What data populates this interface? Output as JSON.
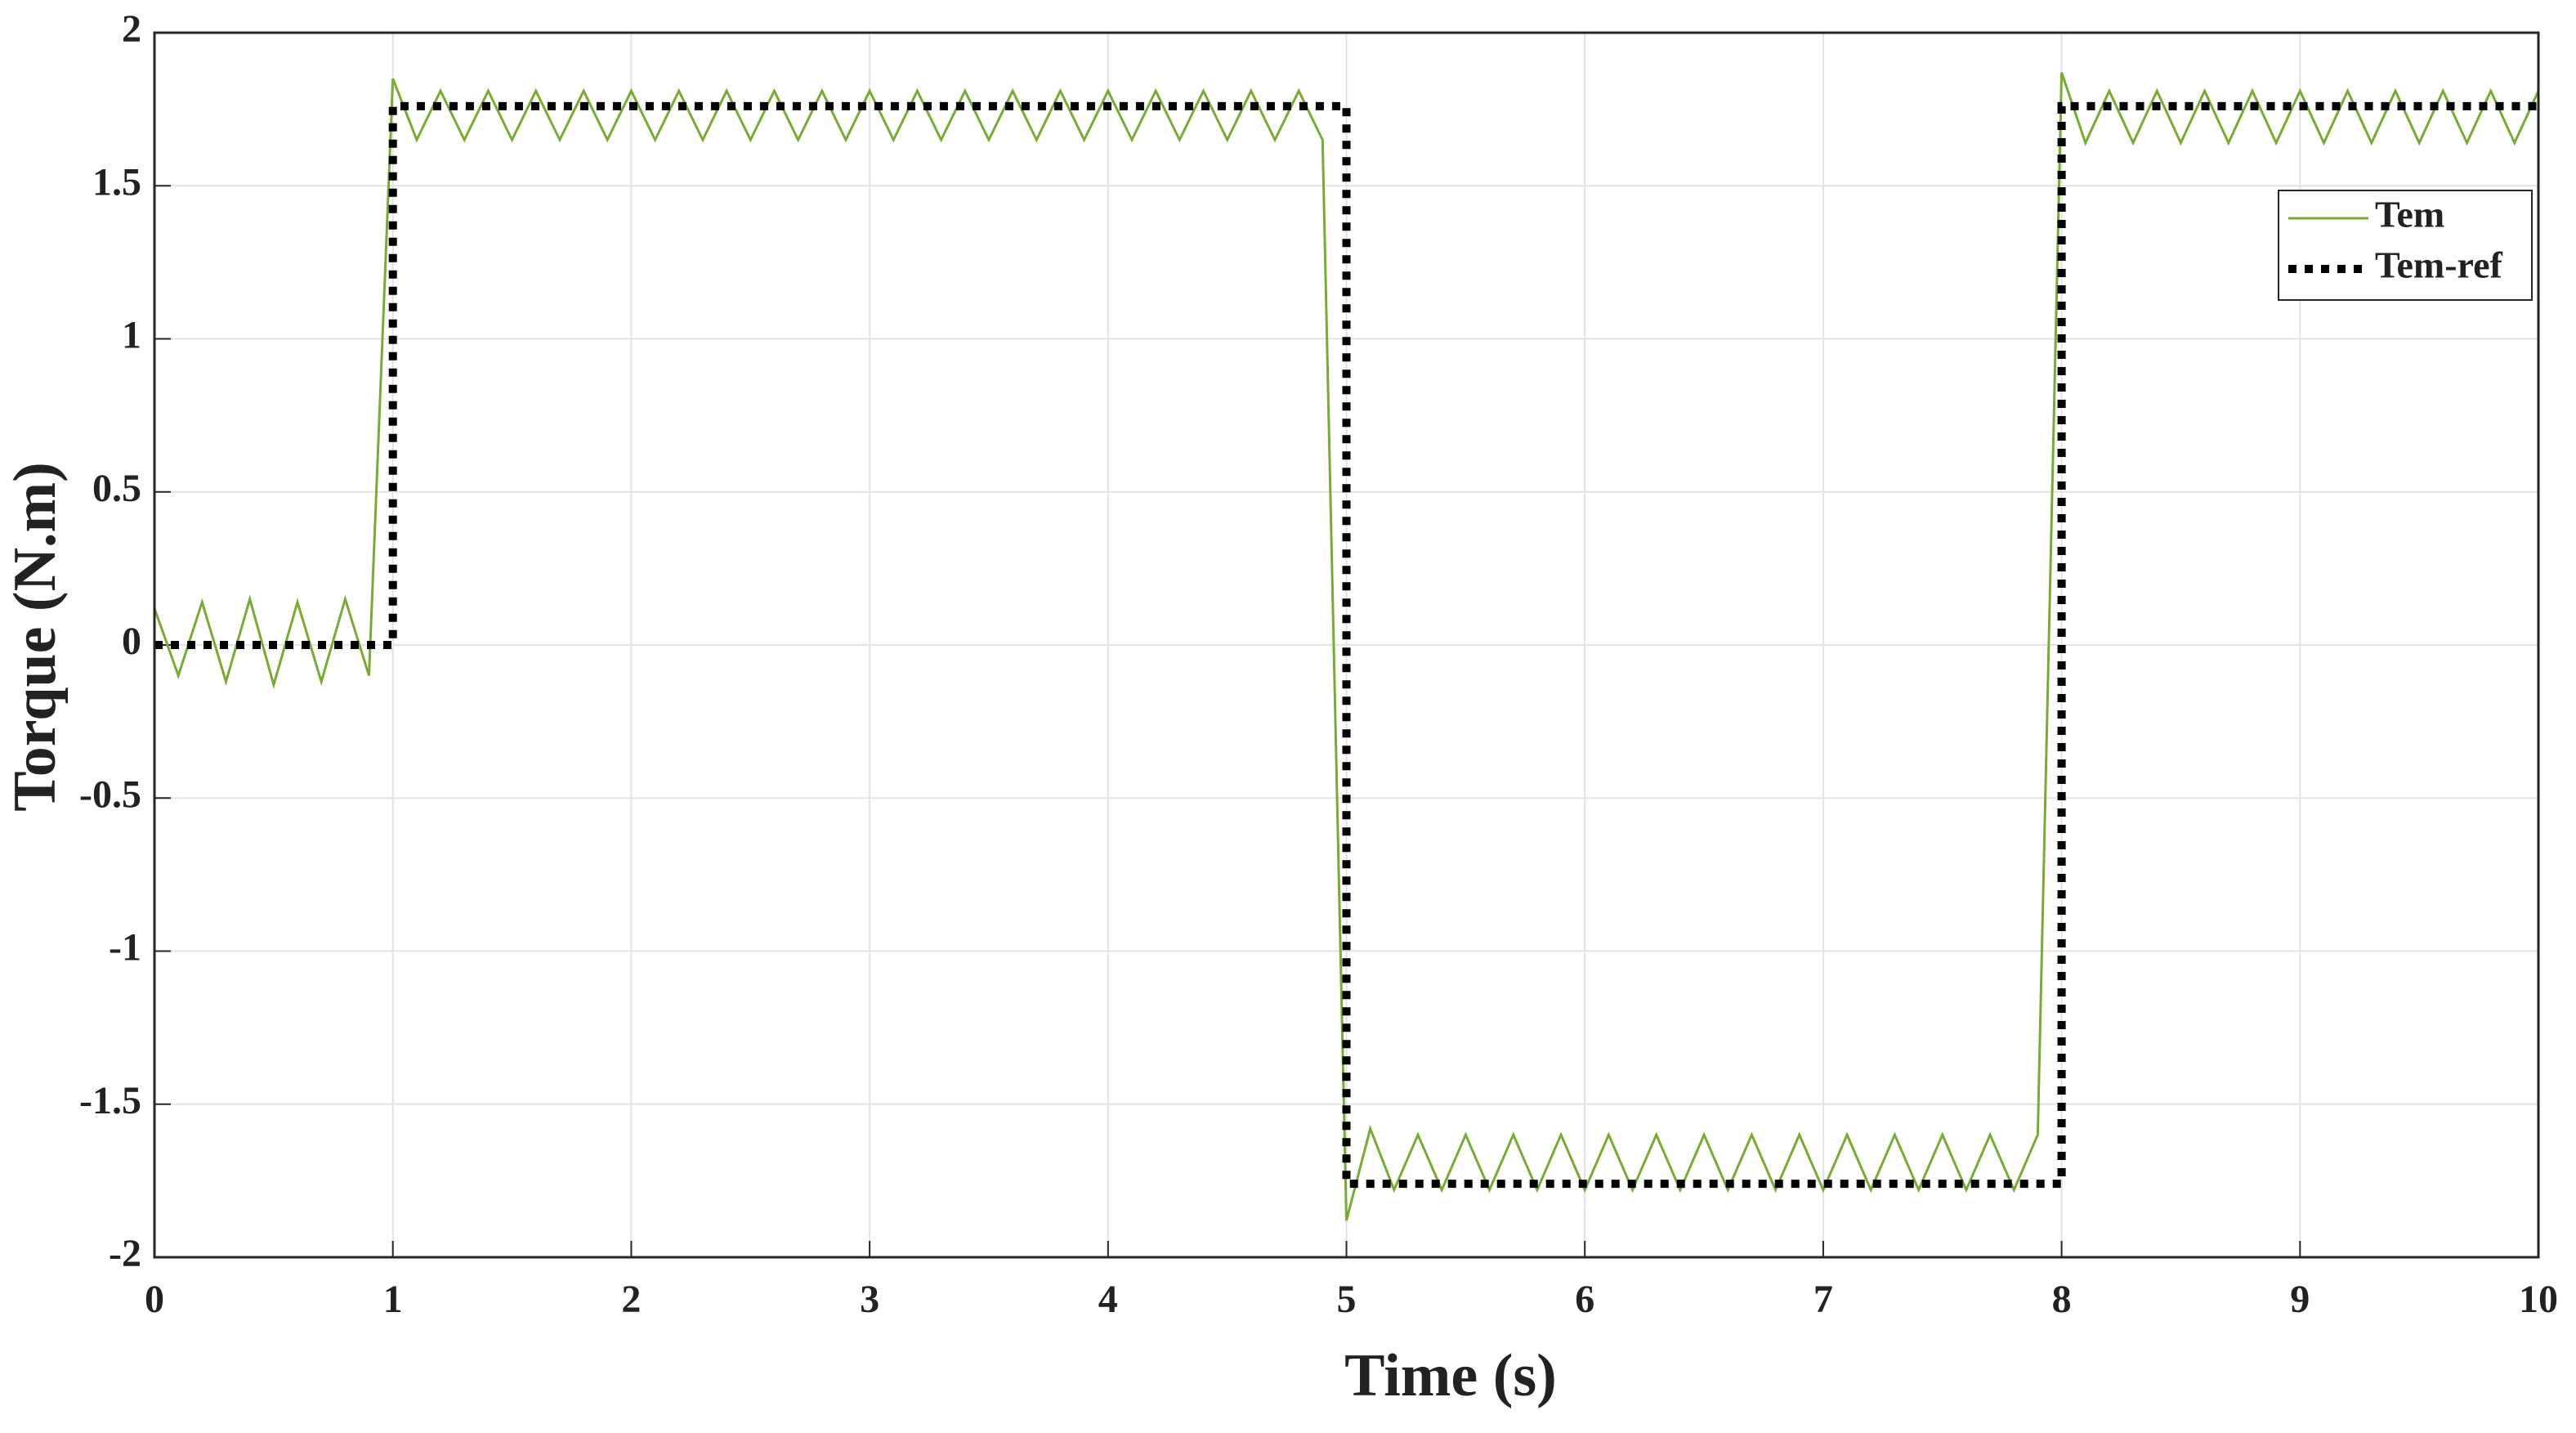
{
  "chart_data": {
    "type": "line",
    "xlabel": "Time (s)",
    "ylabel": "Torque (N.m)",
    "xlim": [
      0,
      10
    ],
    "ylim": [
      -2,
      2
    ],
    "xticks": [
      0,
      1,
      2,
      3,
      4,
      5,
      6,
      7,
      8,
      9,
      10
    ],
    "yticks": [
      -2,
      -1.5,
      -1,
      -0.5,
      0,
      0.5,
      1,
      1.5,
      2
    ],
    "grid": true,
    "legend": "upper right",
    "series": [
      {
        "name": "Tem",
        "color": "#77ac30",
        "style": "solid",
        "x": [
          0,
          0.1,
          0.2,
          0.3,
          0.4,
          0.5,
          0.6,
          0.7,
          0.8,
          0.9,
          1,
          1.1,
          1.2,
          1.3,
          1.4,
          1.5,
          1.6,
          1.7,
          1.8,
          1.9,
          2,
          2.1,
          2.2,
          2.3,
          2.4,
          2.5,
          2.6,
          2.7,
          2.8,
          2.9,
          3,
          3.1,
          3.2,
          3.3,
          3.4,
          3.5,
          3.6,
          3.7,
          3.8,
          3.9,
          4,
          4.1,
          4.2,
          4.3,
          4.4,
          4.5,
          4.6,
          4.7,
          4.8,
          4.9,
          5,
          5.1,
          5.2,
          5.3,
          5.4,
          5.5,
          5.6,
          5.7,
          5.8,
          5.9,
          6,
          6.1,
          6.2,
          6.3,
          6.4,
          6.5,
          6.6,
          6.7,
          6.8,
          6.9,
          7,
          7.1,
          7.2,
          7.3,
          7.4,
          7.5,
          7.6,
          7.7,
          7.8,
          7.9,
          8,
          8.1,
          8.2,
          8.3,
          8.4,
          8.5,
          8.6,
          8.7,
          8.8,
          8.9,
          9,
          9.1,
          9.2,
          9.3,
          9.4,
          9.5,
          9.6,
          9.7,
          9.8,
          9.9,
          10
        ],
        "values": [
          0.12,
          -0.1,
          0.14,
          -0.12,
          0.15,
          -0.13,
          0.14,
          -0.12,
          0.15,
          -0.1,
          1.85,
          1.65,
          1.81,
          1.65,
          1.81,
          1.65,
          1.81,
          1.65,
          1.81,
          1.65,
          1.81,
          1.65,
          1.81,
          1.65,
          1.81,
          1.65,
          1.81,
          1.65,
          1.81,
          1.65,
          1.81,
          1.65,
          1.81,
          1.65,
          1.81,
          1.65,
          1.81,
          1.65,
          1.81,
          1.65,
          1.81,
          1.65,
          1.81,
          1.65,
          1.81,
          1.65,
          1.81,
          1.65,
          1.81,
          1.65,
          -1.88,
          -1.58,
          -1.78,
          -1.6,
          -1.78,
          -1.6,
          -1.78,
          -1.6,
          -1.78,
          -1.6,
          -1.78,
          -1.6,
          -1.78,
          -1.6,
          -1.78,
          -1.6,
          -1.78,
          -1.6,
          -1.78,
          -1.6,
          -1.78,
          -1.6,
          -1.78,
          -1.6,
          -1.78,
          -1.6,
          -1.78,
          -1.6,
          -1.78,
          -1.6,
          1.87,
          1.64,
          1.81,
          1.64,
          1.81,
          1.64,
          1.81,
          1.64,
          1.81,
          1.64,
          1.81,
          1.64,
          1.81,
          1.64,
          1.81,
          1.64,
          1.81,
          1.64,
          1.81,
          1.64,
          1.81
        ]
      },
      {
        "name": "Tem-ref",
        "color": "#000000",
        "style": "dotted",
        "x": [
          0,
          1,
          1,
          5,
          5,
          8,
          8,
          10
        ],
        "values": [
          0,
          0,
          1.76,
          1.76,
          -1.76,
          -1.76,
          1.76,
          1.76
        ]
      }
    ]
  }
}
